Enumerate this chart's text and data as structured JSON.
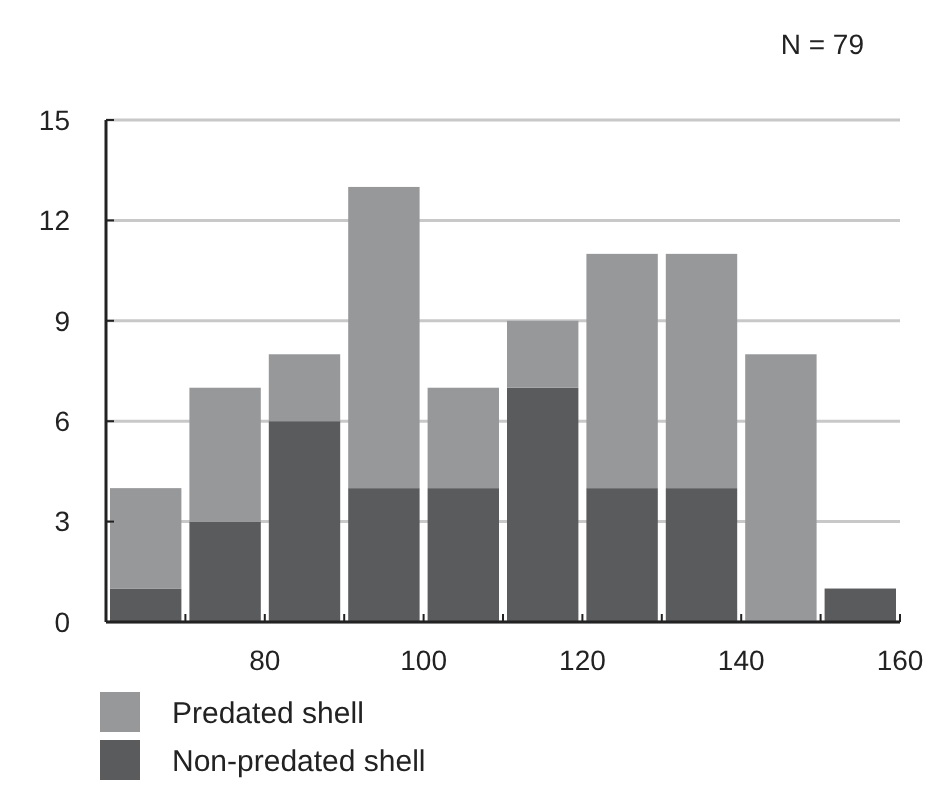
{
  "chart_data": {
    "type": "bar",
    "stacked": true,
    "annotations": [
      "N = 79"
    ],
    "x": [
      65,
      75,
      85,
      95,
      105,
      115,
      125,
      135,
      145,
      155
    ],
    "series": [
      {
        "name": "Non-predated shell",
        "color": "#5a5b5d",
        "values": [
          1,
          3,
          6,
          4,
          4,
          7,
          4,
          4,
          0,
          1
        ]
      },
      {
        "name": "Predated shell",
        "color": "#97989a",
        "values": [
          3,
          4,
          2,
          9,
          3,
          2,
          7,
          7,
          8,
          0
        ]
      }
    ],
    "xlim": [
      60,
      160
    ],
    "xticks": [
      {
        "value": 60,
        "label": null
      },
      {
        "value": 70,
        "label": null
      },
      80,
      {
        "value": 90,
        "label": null
      },
      100,
      {
        "value": 110,
        "label": null
      },
      120,
      {
        "value": 130,
        "label": null
      },
      140,
      {
        "value": 150,
        "label": null
      },
      160
    ],
    "ylim": [
      0,
      15
    ],
    "yticks": [
      0,
      3,
      6,
      9,
      12,
      15
    ],
    "grid": "y",
    "legend": "bottom"
  }
}
